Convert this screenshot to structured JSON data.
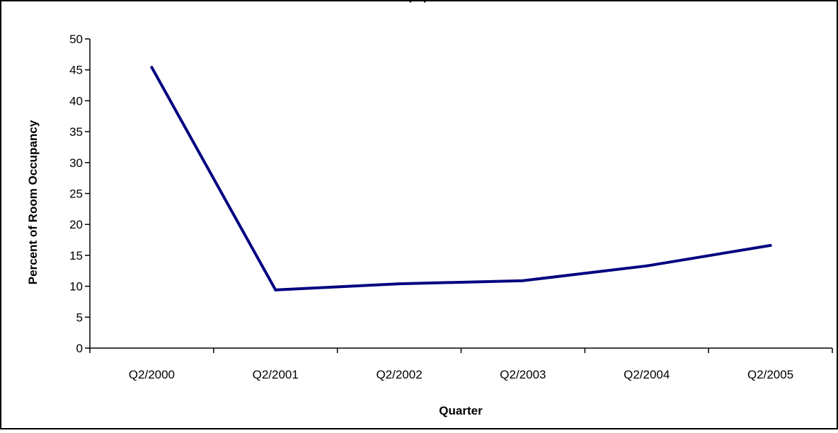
{
  "chart_data": {
    "type": "line",
    "title": "(…)",
    "xlabel": "Quarter",
    "ylabel": "Percent of Room Occupancy",
    "categories": [
      "Q2/2000",
      "Q2/2001",
      "Q2/2002",
      "Q2/2003",
      "Q2/2004",
      "Q2/2005"
    ],
    "series": [
      {
        "values": [
          45.4,
          9.4,
          10.4,
          10.9,
          13.3,
          16.6
        ]
      }
    ],
    "ylim": [
      0,
      50
    ],
    "yticks": [
      0,
      5,
      10,
      15,
      20,
      25,
      30,
      35,
      40,
      45,
      50
    ],
    "grid": false,
    "legend": "none",
    "line_color": "#000080"
  }
}
